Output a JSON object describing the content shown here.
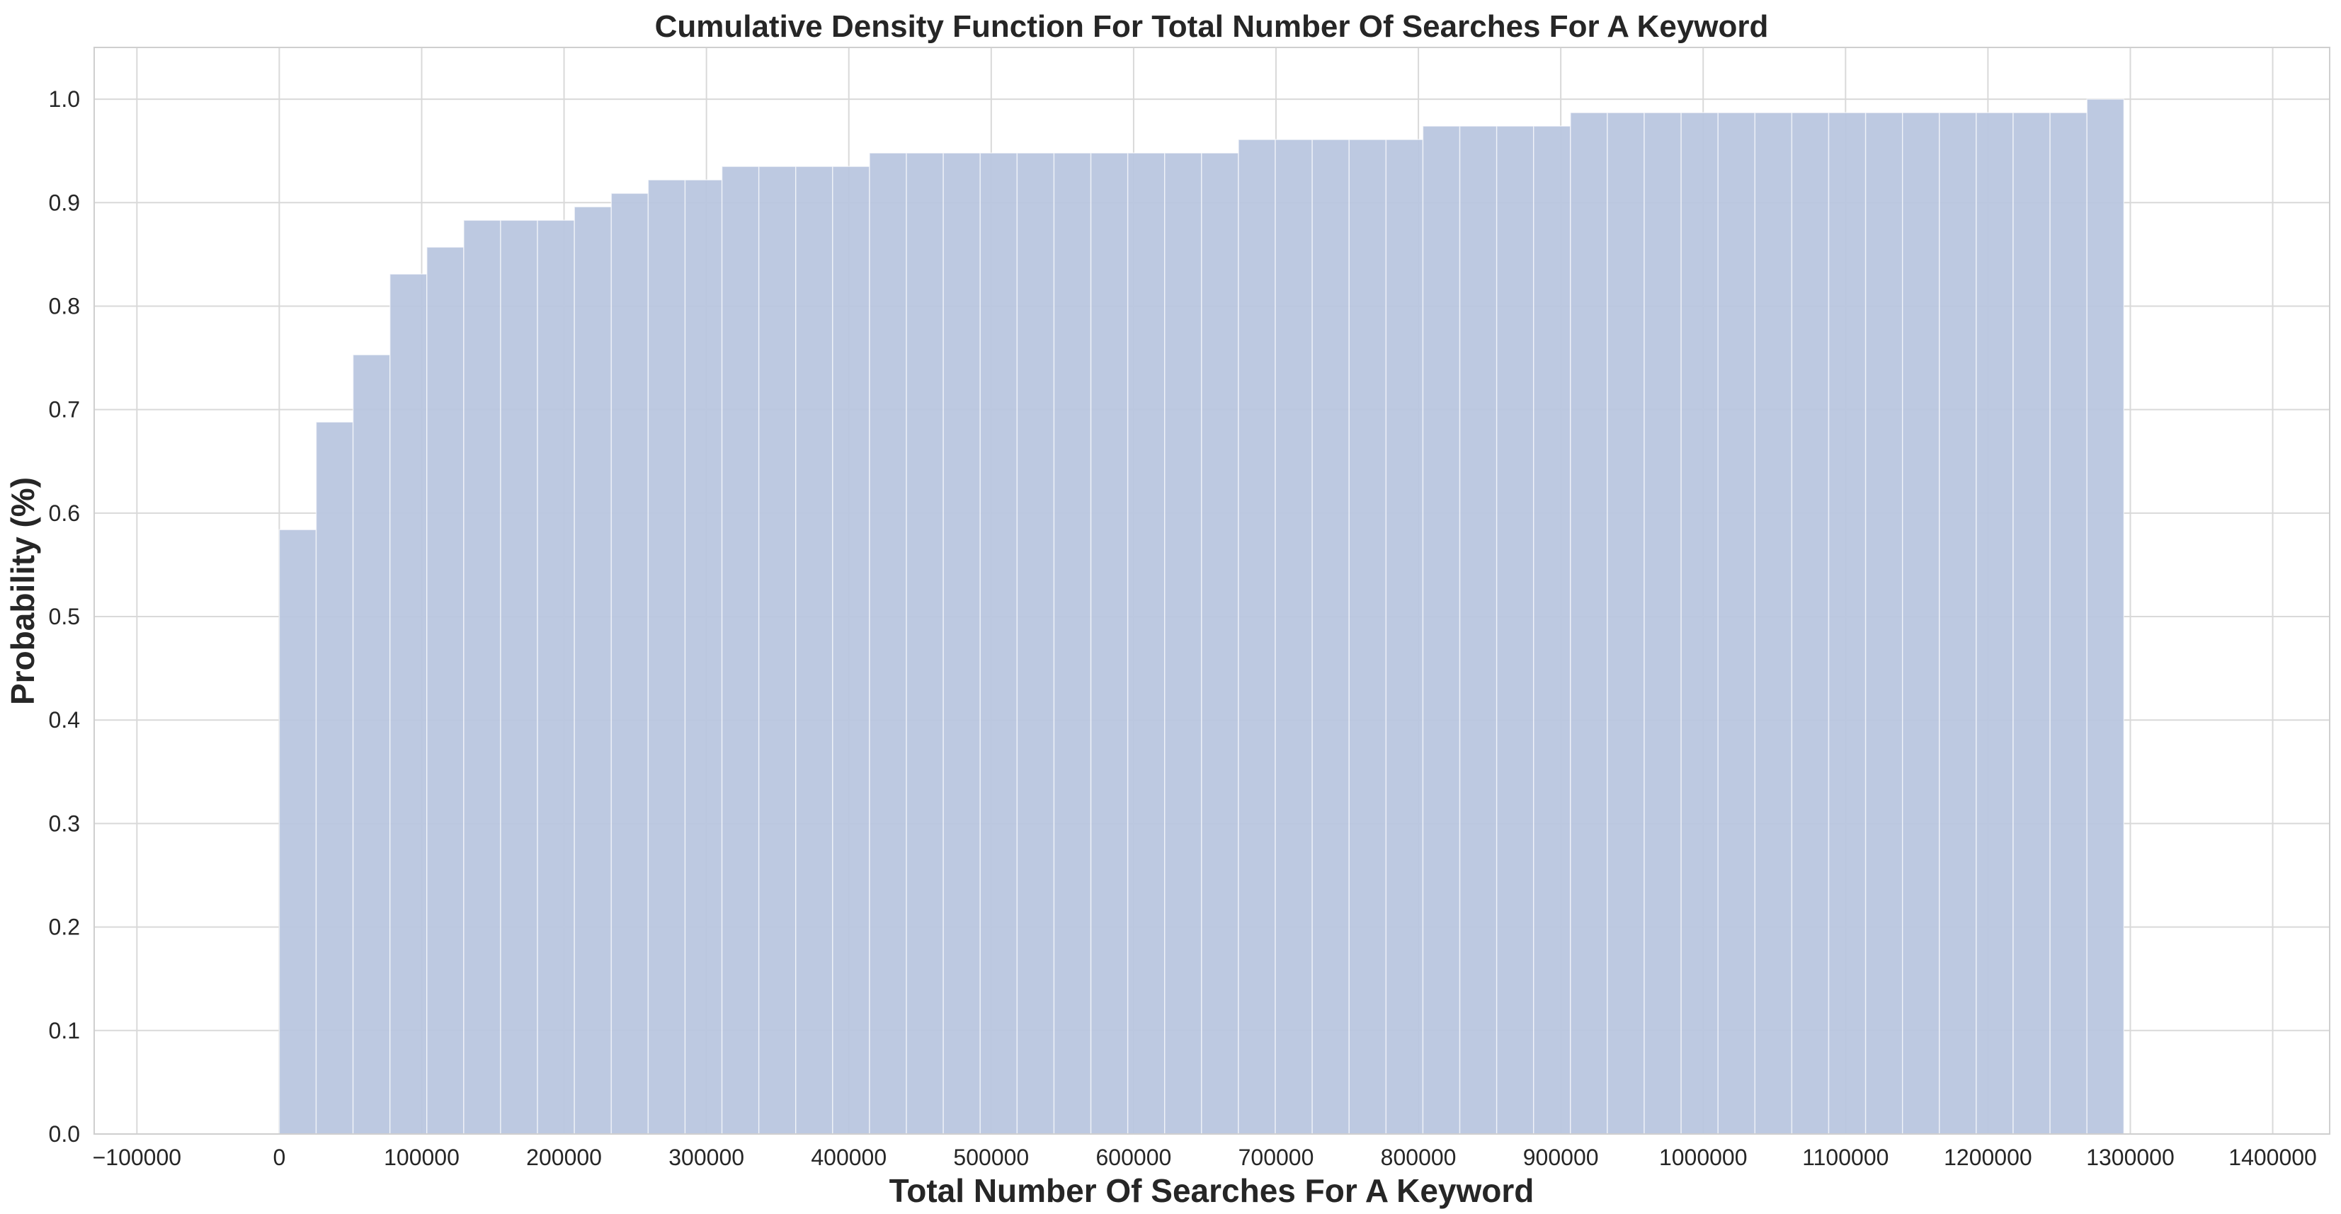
{
  "chart_data": {
    "type": "bar",
    "title": "Cumulative Density Function For Total Number Of Searches For A Keyword",
    "xlabel": "Total Number Of Searches For A Keyword",
    "ylabel": "Probability (%)",
    "xlim": [
      -130000,
      1440000
    ],
    "ylim": [
      0,
      1.05
    ],
    "x_ticks": [
      -100000,
      0,
      100000,
      200000,
      300000,
      400000,
      500000,
      600000,
      700000,
      800000,
      900000,
      1000000,
      1100000,
      1200000,
      1300000,
      1400000
    ],
    "x_tick_labels": [
      "−100000",
      "0",
      "100000",
      "200000",
      "300000",
      "400000",
      "500000",
      "600000",
      "700000",
      "800000",
      "900000",
      "1000000",
      "1100000",
      "1200000",
      "1300000",
      "1400000"
    ],
    "y_ticks": [
      0.0,
      0.1,
      0.2,
      0.3,
      0.4,
      0.5,
      0.6,
      0.7,
      0.8,
      0.9,
      1.0
    ],
    "y_tick_labels": [
      "0.0",
      "0.1",
      "0.2",
      "0.3",
      "0.4",
      "0.5",
      "0.6",
      "0.7",
      "0.8",
      "0.9",
      "1.0"
    ],
    "grid": true,
    "bar_color": "#b9c6df",
    "bin_width": 25909,
    "bin_start": 0,
    "values": [
      0.584,
      0.688,
      0.753,
      0.831,
      0.857,
      0.883,
      0.883,
      0.883,
      0.896,
      0.909,
      0.922,
      0.922,
      0.935,
      0.935,
      0.935,
      0.935,
      0.948,
      0.948,
      0.948,
      0.948,
      0.948,
      0.948,
      0.948,
      0.948,
      0.948,
      0.948,
      0.961,
      0.961,
      0.961,
      0.961,
      0.961,
      0.974,
      0.974,
      0.974,
      0.974,
      0.987,
      0.987,
      0.987,
      0.987,
      0.987,
      0.987,
      0.987,
      0.987,
      0.987,
      0.987,
      0.987,
      0.987,
      0.987,
      0.987,
      1.0
    ]
  }
}
